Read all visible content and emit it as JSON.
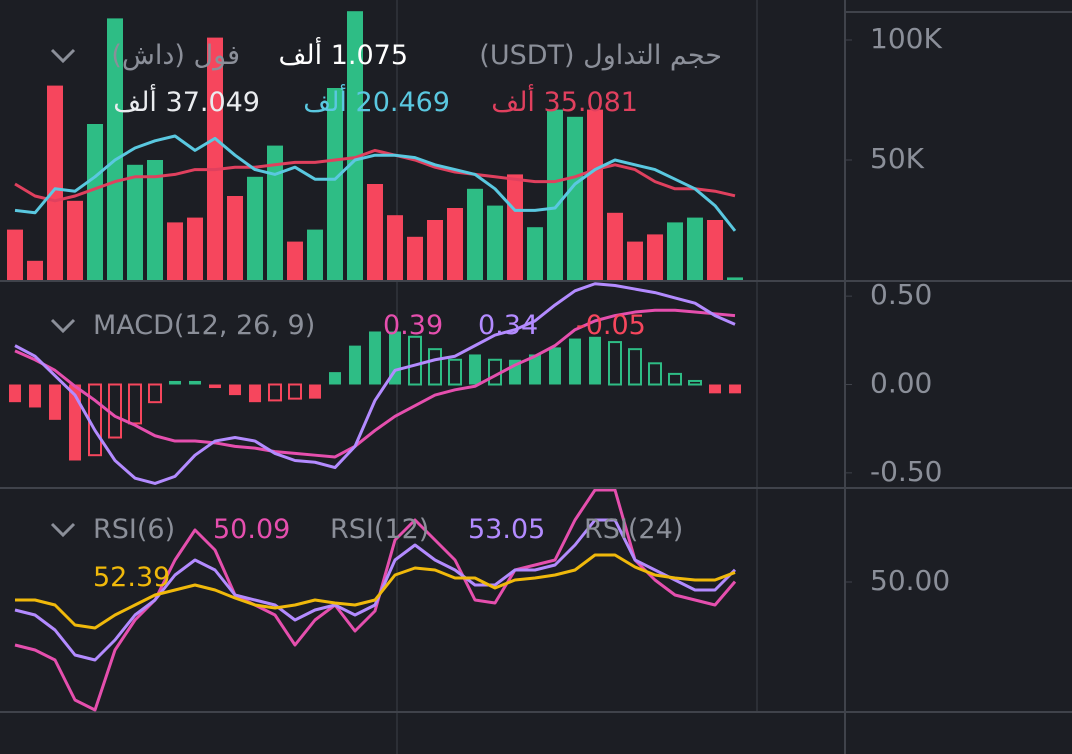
{
  "chart_data": [
    {
      "type": "bar",
      "title": "حجم التداول (USDT)",
      "subtitle": "فول (داش)",
      "last_label": "1.075 ألف",
      "values": [
        21000,
        8000,
        81000,
        33000,
        65000,
        109000,
        48000,
        50000,
        24000,
        26000,
        101000,
        35000,
        43000,
        56000,
        16000,
        21000,
        80000,
        112000,
        40000,
        27000,
        18000,
        25000,
        30000,
        38000,
        31000,
        44000,
        22000,
        71000,
        68000,
        71000,
        28000,
        16000,
        19000,
        24000,
        26000,
        25000,
        1075
      ],
      "colors": [
        "#f6465d",
        "#f6465d",
        "#f6465d",
        "#f6465d",
        "#2ebd85",
        "#2ebd85",
        "#2ebd85",
        "#2ebd85",
        "#f6465d",
        "#f6465d",
        "#f6465d",
        "#f6465d",
        "#2ebd85",
        "#2ebd85",
        "#f6465d",
        "#2ebd85",
        "#2ebd85",
        "#2ebd85",
        "#f6465d",
        "#f6465d",
        "#f6465d",
        "#f6465d",
        "#f6465d",
        "#2ebd85",
        "#2ebd85",
        "#f6465d",
        "#2ebd85",
        "#2ebd85",
        "#2ebd85",
        "#f6465d",
        "#f6465d",
        "#f6465d",
        "#f6465d",
        "#2ebd85",
        "#2ebd85",
        "#f6465d",
        "#2ebd85"
      ],
      "series": [
        {
          "color": "#e0405e",
          "last_label": "35.081 ألف",
          "values": [
            40000,
            35000,
            33000,
            35000,
            38000,
            41000,
            43000,
            43000,
            44000,
            46000,
            46000,
            47000,
            47000,
            48000,
            49000,
            49000,
            50000,
            51000,
            54000,
            52000,
            50000,
            47000,
            45000,
            44000,
            43000,
            42000,
            41000,
            41000,
            43000,
            46000,
            48000,
            46000,
            41000,
            38000,
            38000,
            37000,
            35081
          ]
        },
        {
          "color": "#5ac8e0",
          "last_label": "20.469 ألف",
          "values": [
            29000,
            28000,
            38000,
            37000,
            43000,
            50000,
            55000,
            58000,
            60000,
            54000,
            59000,
            52000,
            46000,
            44000,
            47000,
            42000,
            42000,
            50000,
            52000,
            52000,
            51000,
            48000,
            46000,
            44000,
            38000,
            29000,
            29000,
            30000,
            40000,
            46000,
            50000,
            48000,
            46000,
            42000,
            38000,
            31000,
            20469
          ]
        },
        {
          "color": "#eaecef",
          "last_label": "37.049 ألف"
        }
      ],
      "ylim": [
        0,
        116667
      ],
      "yticks": [
        {
          "value": 100000,
          "label": "100K"
        },
        {
          "value": 50000,
          "label": "50K"
        }
      ]
    },
    {
      "type": "bar",
      "title": "MACD(12, 26, 9)",
      "up_color": "#2ebd85",
      "down_color": "#f6465d",
      "values": [
        -0.1,
        -0.13,
        -0.2,
        -0.43,
        -0.4,
        -0.3,
        -0.22,
        -0.1,
        0.02,
        0.02,
        -0.02,
        -0.06,
        -0.1,
        -0.09,
        -0.08,
        -0.08,
        0.07,
        0.22,
        0.3,
        0.3,
        0.27,
        0.2,
        0.14,
        0.17,
        0.14,
        0.14,
        0.17,
        0.21,
        0.26,
        0.27,
        0.24,
        0.2,
        0.12,
        0.06,
        0.02,
        -0.05,
        -0.05
      ],
      "series": [
        {
          "color": "#e54fae",
          "values": [
            0.19,
            0.14,
            0.08,
            -0.01,
            -0.09,
            -0.18,
            -0.23,
            -0.29,
            -0.32,
            -0.32,
            -0.33,
            -0.35,
            -0.36,
            -0.38,
            -0.39,
            -0.4,
            -0.41,
            -0.35,
            -0.26,
            -0.18,
            -0.12,
            -0.06,
            -0.03,
            -0.01,
            0.05,
            0.11,
            0.16,
            0.22,
            0.31,
            0.36,
            0.39,
            0.41,
            0.42,
            0.42,
            0.41,
            0.4,
            0.39
          ]
        },
        {
          "color": "#b38bff",
          "values": [
            0.22,
            0.16,
            0.05,
            -0.06,
            -0.26,
            -0.43,
            -0.53,
            -0.56,
            -0.52,
            -0.4,
            -0.32,
            -0.3,
            -0.32,
            -0.39,
            -0.43,
            -0.44,
            -0.47,
            -0.35,
            -0.09,
            0.08,
            0.11,
            0.14,
            0.16,
            0.22,
            0.28,
            0.31,
            0.36,
            0.45,
            0.53,
            0.57,
            0.56,
            0.54,
            0.52,
            0.49,
            0.46,
            0.39,
            0.34
          ]
        }
      ],
      "ylim": [
        -0.58,
        0.58
      ],
      "yticks": [
        {
          "value": 0.5,
          "label": "0.50"
        },
        {
          "value": 0,
          "label": "0.00"
        },
        {
          "value": -0.5,
          "label": "-0.50"
        }
      ]
    },
    {
      "type": "line",
      "series": [
        {
          "name": "RSI(6)",
          "color": "#e54fae",
          "values": [
            34.25,
            33,
            30.5,
            20.5,
            18,
            33,
            40.5,
            45.5,
            55.5,
            63,
            58,
            46.75,
            44.25,
            41.75,
            34.25,
            40.5,
            44.25,
            37.75,
            42.75,
            60.5,
            65.5,
            60.5,
            55.5,
            45.5,
            44.75,
            53,
            54.25,
            55.5,
            65.5,
            73,
            73,
            55.5,
            50.5,
            46.75,
            45.5,
            44.25,
            50.09
          ]
        },
        {
          "name": "RSI(12)",
          "color": "#b38bff",
          "values": [
            43,
            41.75,
            38,
            31.75,
            30.5,
            35.5,
            41.75,
            45.5,
            51.75,
            55.5,
            53,
            46.75,
            45.5,
            44.25,
            40.5,
            43,
            44.25,
            41.75,
            44.25,
            55.5,
            59.25,
            55.5,
            53,
            49.25,
            49.25,
            53,
            53,
            54.25,
            59.25,
            65.5,
            65.5,
            55.5,
            53,
            50.5,
            48,
            48,
            53.05
          ]
        },
        {
          "name": "RSI(24)",
          "color": "#f0b90b",
          "values": [
            45.5,
            45.5,
            44.25,
            39.25,
            38.5,
            41.75,
            44.25,
            46.75,
            48,
            49.25,
            48,
            46,
            44.25,
            43.5,
            44.25,
            45.5,
            44.75,
            44.25,
            45.5,
            51.75,
            53.5,
            53,
            51,
            51,
            48.5,
            50.5,
            51,
            51.75,
            53,
            56.75,
            56.75,
            53.75,
            51.75,
            51,
            50.5,
            50.5,
            52.39
          ]
        }
      ],
      "ylim": [
        17.5,
        73.25
      ],
      "yticks": [
        {
          "value": 50,
          "label": "50.00"
        }
      ]
    }
  ]
}
